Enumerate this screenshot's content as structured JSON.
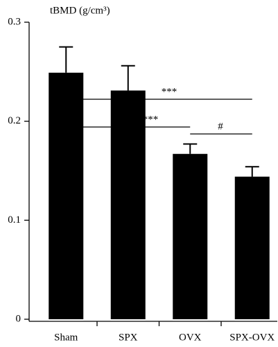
{
  "chart_data": {
    "type": "bar",
    "y_label": "tBMD (g/cm³)",
    "categories": [
      "Sham",
      "SPX",
      "OVX",
      "SPX-OVX"
    ],
    "values": [
      0.249,
      0.231,
      0.167,
      0.144
    ],
    "errors": [
      0.026,
      0.025,
      0.01,
      0.01
    ],
    "color": "#000000",
    "ylim": [
      0,
      0.3
    ],
    "yticks": [
      0,
      0.1,
      0.2,
      0.3
    ],
    "annotations": [
      "***",
      "***",
      "#"
    ]
  }
}
